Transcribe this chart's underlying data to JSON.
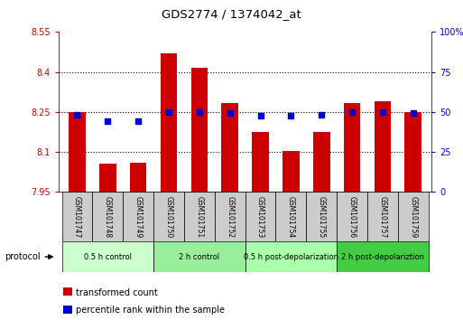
{
  "title": "GDS2774 / 1374042_at",
  "samples": [
    "GSM101747",
    "GSM101748",
    "GSM101749",
    "GSM101750",
    "GSM101751",
    "GSM101752",
    "GSM101753",
    "GSM101754",
    "GSM101755",
    "GSM101756",
    "GSM101757",
    "GSM101759"
  ],
  "bar_values": [
    8.25,
    8.055,
    8.06,
    8.47,
    8.415,
    8.285,
    8.175,
    8.105,
    8.175,
    8.285,
    8.29,
    8.25
  ],
  "bar_bottom": 7.95,
  "percentile_values": [
    8.24,
    8.215,
    8.215,
    8.25,
    8.25,
    8.245,
    8.235,
    8.235,
    8.24,
    8.25,
    8.25,
    8.245
  ],
  "bar_color": "#cc0000",
  "percentile_color": "#0000cc",
  "ylim_left": [
    7.95,
    8.55
  ],
  "ylim_right": [
    0,
    100
  ],
  "yticks_left": [
    7.95,
    8.1,
    8.25,
    8.4,
    8.55
  ],
  "yticks_right": [
    0,
    25,
    50,
    75,
    100
  ],
  "ytick_labels_left": [
    "7.95",
    "8.1",
    "8.25",
    "8.4",
    "8.55"
  ],
  "ytick_labels_right": [
    "0",
    "25",
    "50",
    "75",
    "100%"
  ],
  "hlines": [
    8.1,
    8.25,
    8.4
  ],
  "groups": [
    {
      "label": "0.5 h control",
      "start": 0,
      "end": 3,
      "color": "#ccffcc"
    },
    {
      "label": "2 h control",
      "start": 3,
      "end": 6,
      "color": "#99ee99"
    },
    {
      "label": "0.5 h post-depolarization",
      "start": 6,
      "end": 9,
      "color": "#aaffaa"
    },
    {
      "label": "2 h post-depolariztion",
      "start": 9,
      "end": 12,
      "color": "#44cc44"
    }
  ],
  "protocol_label": "protocol",
  "legend_bar_label": "transformed count",
  "legend_pct_label": "percentile rank within the sample",
  "bar_width": 0.55,
  "ylabel_left_color": "#cc0000",
  "ylabel_right_color": "#0000cc",
  "sample_box_color": "#cccccc",
  "fig_width": 5.13,
  "fig_height": 3.54,
  "fig_dpi": 100
}
